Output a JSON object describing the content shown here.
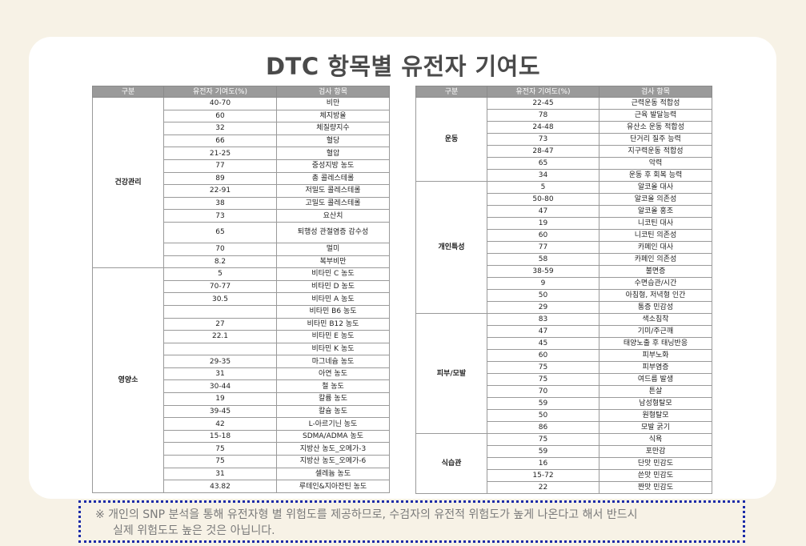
{
  "title": "DTC 항목별 유전자 기여도",
  "headers": [
    "구분",
    "유전자 기여도(%)",
    "검사 항목"
  ],
  "left_table": [
    {
      "category": "건강관리",
      "rows": [
        {
          "contribution": "40-70",
          "item": "비만"
        },
        {
          "contribution": "60",
          "item": "체지방율"
        },
        {
          "contribution": "32",
          "item": "체질량지수"
        },
        {
          "contribution": "66",
          "item": "혈당"
        },
        {
          "contribution": "21-25",
          "item": "혈압"
        },
        {
          "contribution": "77",
          "item": "중성지방 농도"
        },
        {
          "contribution": "89",
          "item": "총 콜레스테롤"
        },
        {
          "contribution": "22-91",
          "item": "저밀도 콜레스테롤"
        },
        {
          "contribution": "38",
          "item": "고밀도 콜레스테롤"
        },
        {
          "contribution": "73",
          "item": "요산치"
        },
        {
          "contribution": "65",
          "item": "퇴행성 관절염증 감수성",
          "tall": true
        },
        {
          "contribution": "70",
          "item": "멀미"
        },
        {
          "contribution": "8.2",
          "item": "복부비만"
        }
      ]
    },
    {
      "category": "영양소",
      "rows": [
        {
          "contribution": "5",
          "item": "비타민 C 농도"
        },
        {
          "contribution": "70-77",
          "item": "비타민 D 농도"
        },
        {
          "contribution": "30.5",
          "item": "비타민 A 농도"
        },
        {
          "contribution": "",
          "item": "비타민 B6 농도"
        },
        {
          "contribution": "27",
          "item": "비타민 B12 농도"
        },
        {
          "contribution": "22.1",
          "item": "비타민 E 농도"
        },
        {
          "contribution": "",
          "item": "비타민 K 농도"
        },
        {
          "contribution": "29-35",
          "item": "마그네슘 농도"
        },
        {
          "contribution": "31",
          "item": "아연 농도"
        },
        {
          "contribution": "30-44",
          "item": "철 농도"
        },
        {
          "contribution": "19",
          "item": "칼륨 농도"
        },
        {
          "contribution": "39-45",
          "item": "칼슘 농도"
        },
        {
          "contribution": "42",
          "item": "L-아르기닌 농도"
        },
        {
          "contribution": "15-18",
          "item": "SDMA/ADMA 농도"
        },
        {
          "contribution": "75",
          "item": "지방산 농도_오메가-3"
        },
        {
          "contribution": "75",
          "item": "지방산 농도_오메가-6"
        },
        {
          "contribution": "31",
          "item": "셀레늄 농도"
        },
        {
          "contribution": "43.82",
          "item": "루테인&지아잔틴 농도"
        }
      ]
    }
  ],
  "right_table": [
    {
      "category": "운동",
      "rows": [
        {
          "contribution": "22-45",
          "item": "근력운동 적합성"
        },
        {
          "contribution": "78",
          "item": "근육 발달능력"
        },
        {
          "contribution": "24-48",
          "item": "유산소 운동 적합성"
        },
        {
          "contribution": "73",
          "item": "단거리 질주 능력"
        },
        {
          "contribution": "28-47",
          "item": "지구력운동 적합성"
        },
        {
          "contribution": "65",
          "item": "악력"
        },
        {
          "contribution": "34",
          "item": "운동 후 회복 능력"
        }
      ]
    },
    {
      "category": "개인특성",
      "rows": [
        {
          "contribution": "5",
          "item": "알코올 대사"
        },
        {
          "contribution": "50-80",
          "item": "알코올 의존성"
        },
        {
          "contribution": "47",
          "item": "알코올 홍조"
        },
        {
          "contribution": "19",
          "item": "니코틴 대사"
        },
        {
          "contribution": "60",
          "item": "니코틴 의존성"
        },
        {
          "contribution": "77",
          "item": "카페인 대사"
        },
        {
          "contribution": "58",
          "item": "카페인 의존성"
        },
        {
          "contribution": "38-59",
          "item": "불면증"
        },
        {
          "contribution": "9",
          "item": "수면습관/시간"
        },
        {
          "contribution": "50",
          "item": "아침형, 저녁형 인간"
        },
        {
          "contribution": "29",
          "item": "통증 민감성"
        }
      ]
    },
    {
      "category": "피부/모발",
      "rows": [
        {
          "contribution": "83",
          "item": "색소침착"
        },
        {
          "contribution": "47",
          "item": "기미/주근깨"
        },
        {
          "contribution": "45",
          "item": "태양노출 후 태닝반응"
        },
        {
          "contribution": "60",
          "item": "피부노화"
        },
        {
          "contribution": "75",
          "item": "피부염증"
        },
        {
          "contribution": "75",
          "item": "여드름 발생"
        },
        {
          "contribution": "70",
          "item": "튼살"
        },
        {
          "contribution": "59",
          "item": "남성형탈모"
        },
        {
          "contribution": "50",
          "item": "원형탈모"
        },
        {
          "contribution": "86",
          "item": "모발 굵기"
        }
      ]
    },
    {
      "category": "식습관",
      "rows": [
        {
          "contribution": "75",
          "item": "식욕"
        },
        {
          "contribution": "59",
          "item": "포만감"
        },
        {
          "contribution": "16",
          "item": "단맛 민감도"
        },
        {
          "contribution": "15-72",
          "item": "쓴맛 민감도"
        },
        {
          "contribution": "22",
          "item": "짠맛 민감도"
        }
      ]
    }
  ],
  "note": {
    "line1": "※ 개인의 SNP 분석을 통해 유전자형 별 위험도를 제공하므로, 수검자의 유전적 위험도가 높게 나온다고 해서 반드시",
    "line2": "실제 위험도도 높은 것은 아닙니다."
  }
}
